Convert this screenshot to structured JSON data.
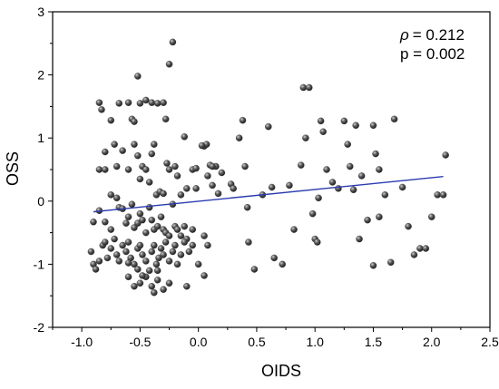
{
  "chart_data": {
    "type": "scatter",
    "xlabel": "OIDS",
    "ylabel": "OSS",
    "xlim": [
      -1.25,
      2.5
    ],
    "ylim": [
      -2,
      3
    ],
    "xticks": [
      -1.0,
      -0.5,
      0.0,
      0.5,
      1.0,
      1.5,
      2.0,
      2.5
    ],
    "yticks": [
      -2,
      -1,
      0,
      1,
      2,
      3
    ],
    "xtick_labels": [
      "-1.0",
      "-0.5",
      "0.0",
      "0.5",
      "1.0",
      "1.5",
      "2.0",
      "2.5"
    ],
    "ytick_labels": [
      "-2",
      "-1",
      "0",
      "1",
      "2",
      "3"
    ],
    "grid": false,
    "annotations": {
      "rho": "= 0.212",
      "p": "p = 0.002"
    },
    "regression": {
      "x": [
        -0.9,
        2.1
      ],
      "y": [
        -0.17,
        0.39
      ],
      "color": "#2a3bb0"
    },
    "point_color": "#3a3a3a",
    "points": [
      [
        -0.85,
        1.56
      ],
      [
        -0.83,
        1.45
      ],
      [
        -0.8,
        0.78
      ],
      [
        -0.75,
        1.28
      ],
      [
        -0.72,
        0.9
      ],
      [
        -0.68,
        1.55
      ],
      [
        -0.6,
        1.56
      ],
      [
        -0.57,
        1.3
      ],
      [
        -0.55,
        1.26
      ],
      [
        -0.52,
        1.98
      ],
      [
        -0.5,
        1.55
      ],
      [
        -0.45,
        1.6
      ],
      [
        -0.4,
        1.56
      ],
      [
        -0.35,
        1.55
      ],
      [
        -0.3,
        1.56
      ],
      [
        -0.28,
        1.3
      ],
      [
        -0.25,
        2.17
      ],
      [
        -0.22,
        2.52
      ],
      [
        -0.85,
        0.5
      ],
      [
        -0.8,
        0.5
      ],
      [
        -0.75,
        0.1
      ],
      [
        -0.7,
        0.55
      ],
      [
        -0.65,
        0.8
      ],
      [
        -0.6,
        0.5
      ],
      [
        -0.55,
        0.9
      ],
      [
        -0.52,
        0.72
      ],
      [
        -0.5,
        0.35
      ],
      [
        -0.48,
        0.55
      ],
      [
        -0.45,
        0.5
      ],
      [
        -0.42,
        0.3
      ],
      [
        -0.4,
        0.75
      ],
      [
        -0.38,
        0.9
      ],
      [
        -0.36,
        0.1
      ],
      [
        -0.33,
        0.15
      ],
      [
        -0.3,
        0.12
      ],
      [
        -0.27,
        0.6
      ],
      [
        -0.25,
        0.5
      ],
      [
        -0.2,
        0.55
      ],
      [
        -0.18,
        0.4
      ],
      [
        -0.15,
        0.1
      ],
      [
        -0.12,
        1.02
      ],
      [
        -0.1,
        0.2
      ],
      [
        -0.05,
        0.5
      ],
      [
        -0.02,
        0.52
      ],
      [
        0.05,
        0.87
      ],
      [
        0.07,
        0.9
      ],
      [
        0.1,
        0.57
      ],
      [
        0.15,
        0.55
      ],
      [
        -0.9,
        -0.33
      ],
      [
        -0.85,
        -0.15
      ],
      [
        -0.8,
        -0.33
      ],
      [
        -0.75,
        -0.45
      ],
      [
        -0.7,
        0.05
      ],
      [
        -0.68,
        -0.1
      ],
      [
        -0.65,
        -0.12
      ],
      [
        -0.62,
        -0.35
      ],
      [
        -0.6,
        -0.25
      ],
      [
        -0.57,
        -0.05
      ],
      [
        -0.55,
        -0.42
      ],
      [
        -0.52,
        -0.35
      ],
      [
        -0.5,
        -0.2
      ],
      [
        -0.48,
        -0.3
      ],
      [
        -0.45,
        -0.5
      ],
      [
        -0.42,
        -0.1
      ],
      [
        -0.4,
        -0.3
      ],
      [
        -0.38,
        -0.45
      ],
      [
        -0.35,
        -0.4
      ],
      [
        -0.32,
        -0.25
      ],
      [
        -0.3,
        -0.45
      ],
      [
        -0.28,
        -0.5
      ],
      [
        -0.25,
        -0.55
      ],
      [
        -0.22,
        -0.05
      ],
      [
        -0.2,
        -0.4
      ],
      [
        -0.18,
        -0.45
      ],
      [
        -0.15,
        -0.55
      ],
      [
        -0.12,
        -0.4
      ],
      [
        -0.1,
        -0.6
      ],
      [
        -0.05,
        -0.45
      ],
      [
        -0.92,
        -0.8
      ],
      [
        -0.9,
        -1.0
      ],
      [
        -0.88,
        -1.08
      ],
      [
        -0.85,
        -0.95
      ],
      [
        -0.82,
        -0.7
      ],
      [
        -0.8,
        -0.65
      ],
      [
        -0.78,
        -0.9
      ],
      [
        -0.75,
        -0.75
      ],
      [
        -0.72,
        -0.6
      ],
      [
        -0.7,
        -0.85
      ],
      [
        -0.68,
        -0.95
      ],
      [
        -0.65,
        -0.7
      ],
      [
        -0.62,
        -0.8
      ],
      [
        -0.6,
        -0.65
      ],
      [
        -0.58,
        -0.9
      ],
      [
        -0.55,
        -1.0
      ],
      [
        -0.52,
        -0.75
      ],
      [
        -0.5,
        -0.7
      ],
      [
        -0.48,
        -0.85
      ],
      [
        -0.45,
        -0.95
      ],
      [
        -0.42,
        -1.1
      ],
      [
        -0.4,
        -0.8
      ],
      [
        -0.38,
        -0.7
      ],
      [
        -0.36,
        -1.0
      ],
      [
        -0.34,
        -0.9
      ],
      [
        -0.32,
        -0.75
      ],
      [
        -0.3,
        -0.85
      ],
      [
        -0.28,
        -0.65
      ],
      [
        -0.25,
        -0.95
      ],
      [
        -0.22,
        -0.8
      ],
      [
        -0.2,
        -0.7
      ],
      [
        -0.18,
        -1.0
      ],
      [
        -0.15,
        -0.85
      ],
      [
        -0.12,
        -0.65
      ],
      [
        -0.08,
        -0.8
      ],
      [
        -0.05,
        -0.7
      ],
      [
        0.0,
        -1.0
      ],
      [
        0.05,
        -0.55
      ],
      [
        0.08,
        -0.7
      ],
      [
        -0.6,
        -1.2
      ],
      [
        -0.55,
        -1.35
      ],
      [
        -0.5,
        -1.3
      ],
      [
        -0.45,
        -1.2
      ],
      [
        -0.4,
        -1.35
      ],
      [
        -0.38,
        -1.45
      ],
      [
        -0.35,
        -1.25
      ],
      [
        -0.3,
        -1.4
      ],
      [
        -0.25,
        -1.3
      ],
      [
        -0.1,
        -1.35
      ],
      [
        0.05,
        -1.18
      ],
      [
        -0.48,
        -1.18
      ],
      [
        -0.52,
        -1.08
      ],
      [
        -0.6,
        -0.98
      ],
      [
        -0.35,
        -1.1
      ],
      [
        0.2,
        0.45
      ],
      [
        0.28,
        0.27
      ],
      [
        0.3,
        0.2
      ],
      [
        0.35,
        1.0
      ],
      [
        0.38,
        1.28
      ],
      [
        0.4,
        0.55
      ],
      [
        0.42,
        -0.1
      ],
      [
        0.43,
        -0.65
      ],
      [
        0.48,
        -1.08
      ],
      [
        0.55,
        0.1
      ],
      [
        0.6,
        1.18
      ],
      [
        0.63,
        0.22
      ],
      [
        0.65,
        -0.9
      ],
      [
        0.72,
        -1.0
      ],
      [
        0.78,
        0.25
      ],
      [
        0.82,
        -0.45
      ],
      [
        0.88,
        0.57
      ],
      [
        0.9,
        1.8
      ],
      [
        0.92,
        1.0
      ],
      [
        0.98,
        -0.2
      ],
      [
        1.0,
        -0.6
      ],
      [
        1.03,
        0.05
      ],
      [
        1.05,
        1.27
      ],
      [
        1.07,
        1.1
      ],
      [
        1.1,
        0.5
      ],
      [
        1.15,
        0.3
      ],
      [
        1.2,
        0.2
      ],
      [
        1.25,
        1.27
      ],
      [
        1.28,
        0.9
      ],
      [
        1.3,
        0.55
      ],
      [
        1.33,
        0.18
      ],
      [
        1.35,
        1.2
      ],
      [
        1.38,
        -0.6
      ],
      [
        1.4,
        0.4
      ],
      [
        1.45,
        -0.3
      ],
      [
        1.5,
        1.2
      ],
      [
        1.52,
        0.75
      ],
      [
        1.55,
        0.5
      ],
      [
        1.5,
        -1.02
      ],
      [
        1.55,
        -0.25
      ],
      [
        1.6,
        0.1
      ],
      [
        1.65,
        -0.97
      ],
      [
        1.68,
        1.3
      ],
      [
        1.75,
        0.22
      ],
      [
        1.8,
        -0.4
      ],
      [
        1.85,
        -0.85
      ],
      [
        1.9,
        -0.75
      ],
      [
        1.95,
        -0.75
      ],
      [
        2.0,
        -0.25
      ],
      [
        2.05,
        0.1
      ],
      [
        2.1,
        0.1
      ],
      [
        2.12,
        0.73
      ],
      [
        0.95,
        1.8
      ],
      [
        1.02,
        -0.65
      ],
      [
        0.03,
        0.88
      ],
      [
        0.08,
        0.4
      ],
      [
        0.12,
        0.25
      ],
      [
        0.17,
        0.12
      ],
      [
        -0.02,
        0.2
      ],
      [
        0.12,
        0.55
      ]
    ]
  }
}
